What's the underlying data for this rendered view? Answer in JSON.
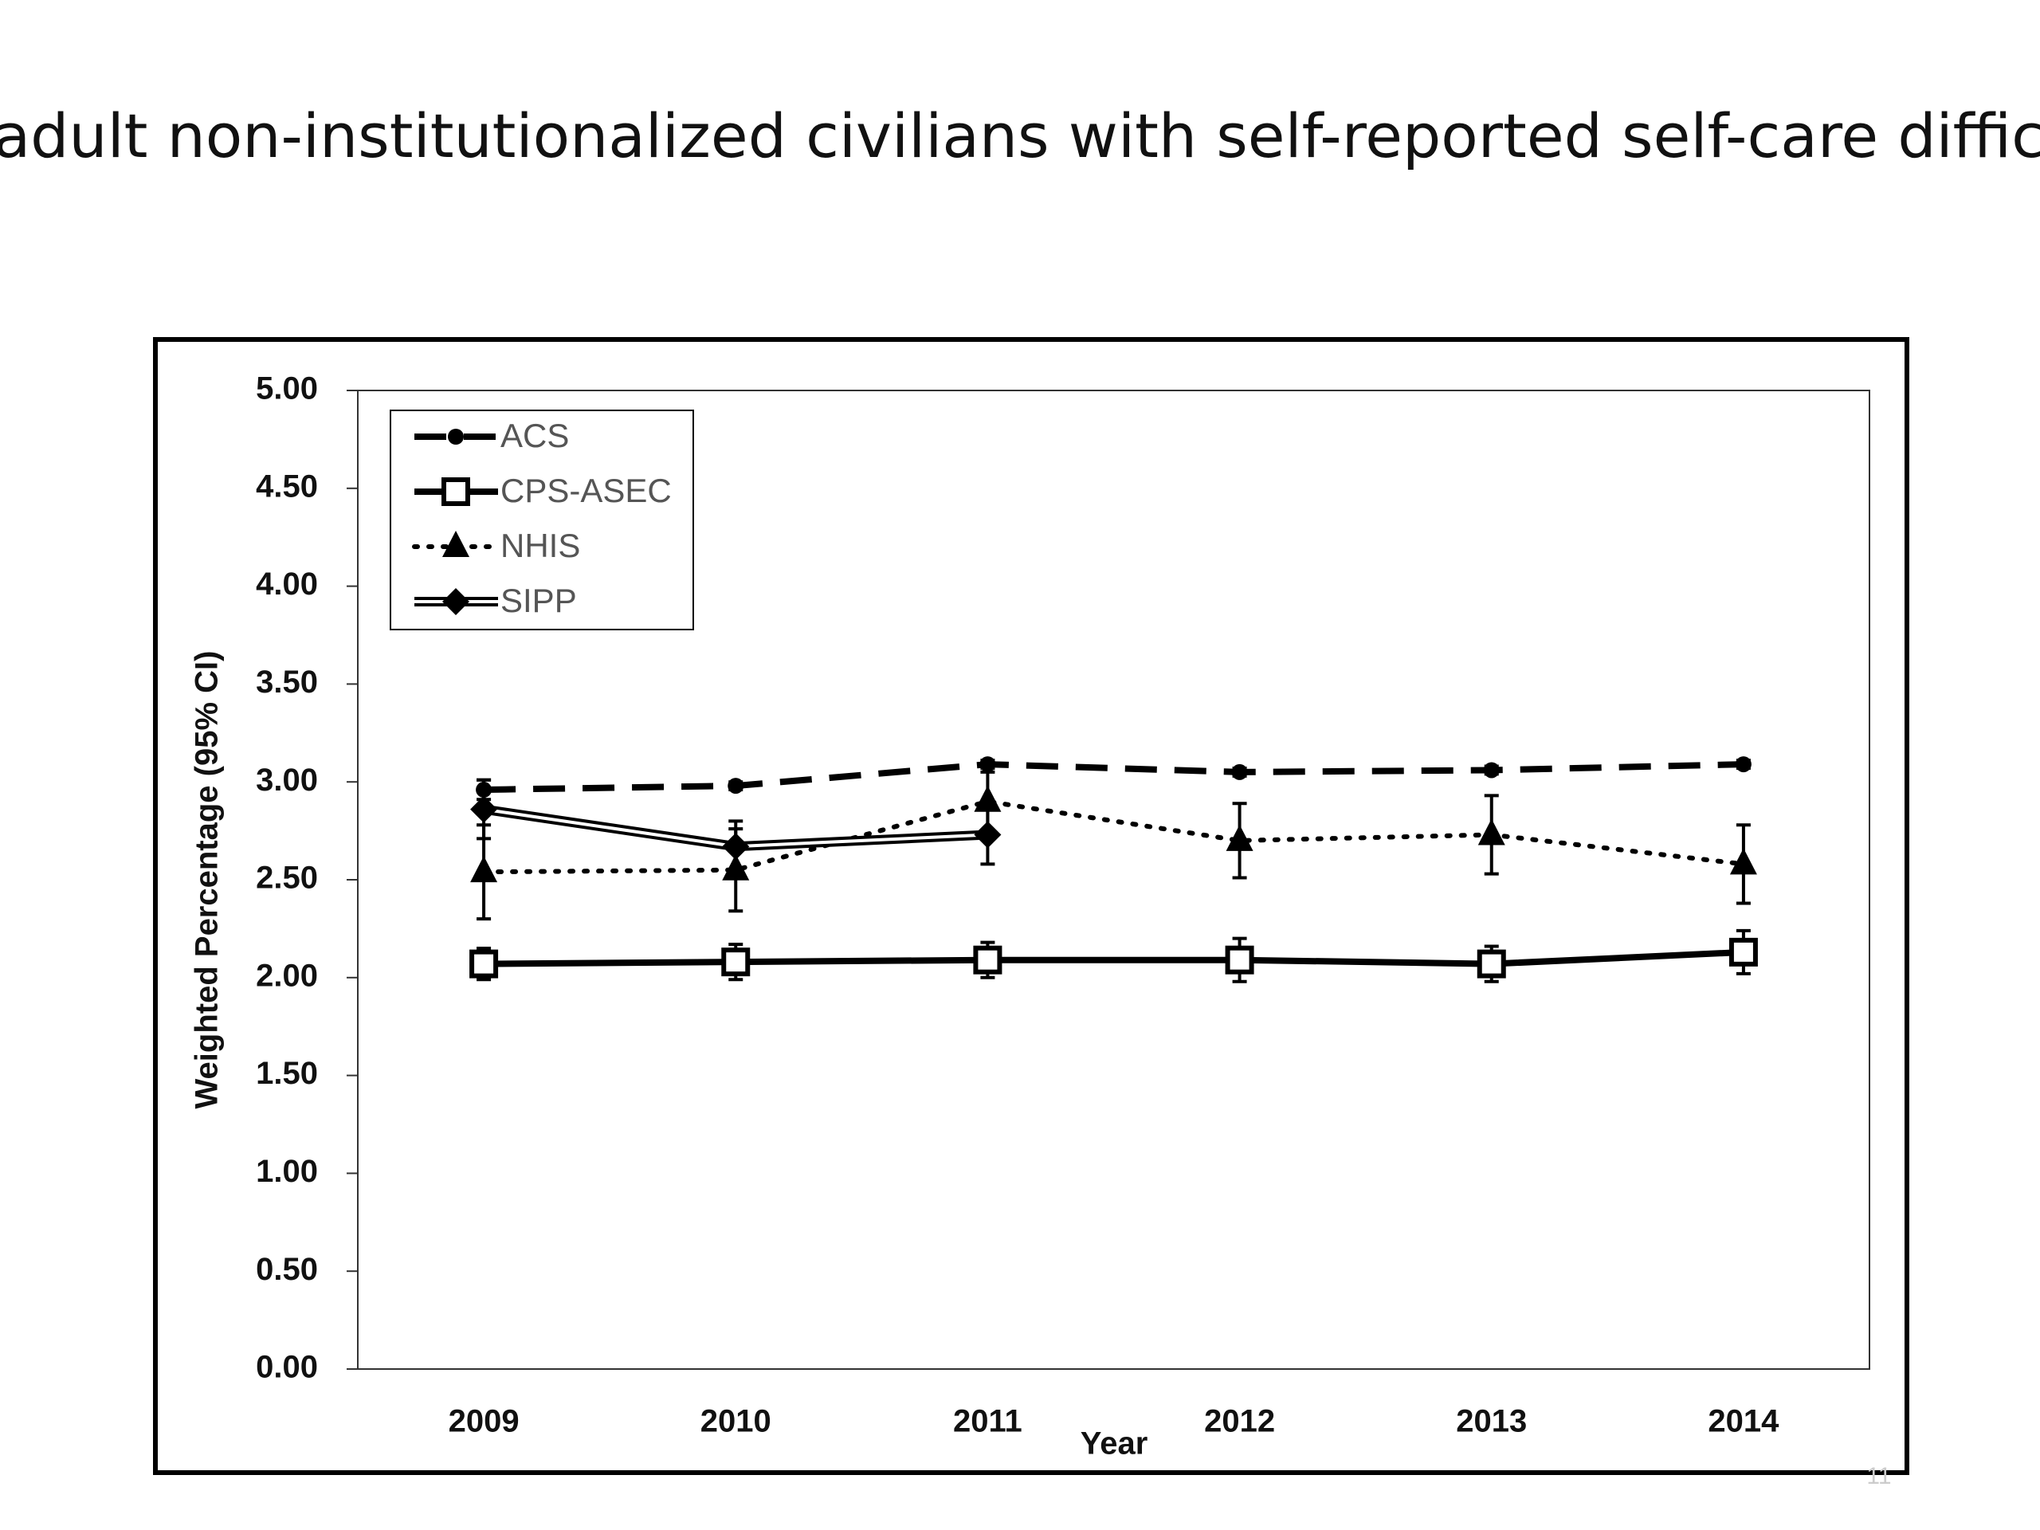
{
  "chart_data": {
    "type": "line",
    "title": "Weighted percentage of adult non-institutionalized civilians with self-reported self-care difficulties by survey and year",
    "x_label": "Year",
    "y_label": "Weighted Percentage (95% CI)",
    "slide_number": "11",
    "categories": [
      "2009",
      "2010",
      "2011",
      "2012",
      "2013",
      "2014"
    ],
    "ylim": [
      0,
      5
    ],
    "yticks": [
      {
        "value": 0,
        "label": "0.00"
      },
      {
        "value": 0.5,
        "label": "0.50"
      },
      {
        "value": 1,
        "label": "1.00"
      },
      {
        "value": 1.5,
        "label": "1.50"
      },
      {
        "value": 2,
        "label": "2.00"
      },
      {
        "value": 2.5,
        "label": "2.50"
      },
      {
        "value": 3,
        "label": "3.00"
      },
      {
        "value": 3.5,
        "label": "3.50"
      },
      {
        "value": 4,
        "label": "4.00"
      },
      {
        "value": 4.5,
        "label": "4.50"
      },
      {
        "value": 5,
        "label": "5.00"
      }
    ],
    "legend": "upper left",
    "series": [
      {
        "name": "ACS",
        "color": "#000000",
        "line_style": "dashed",
        "marker": "circle",
        "values": [
          2.96,
          2.98,
          3.09,
          3.05,
          3.06,
          3.09
        ],
        "errors": [
          0.05,
          0.02,
          0.02,
          0.02,
          0.02,
          0.02
        ]
      },
      {
        "name": "CPS-ASEC",
        "color": "#000000",
        "line_style": "solid",
        "marker": "square",
        "values": [
          2.07,
          2.08,
          2.09,
          2.09,
          2.07,
          2.13
        ],
        "errors": [
          0.08,
          0.09,
          0.09,
          0.11,
          0.09,
          0.11
        ]
      },
      {
        "name": "NHIS",
        "color": "#000000",
        "line_style": "dotted",
        "marker": "triangle",
        "values": [
          2.54,
          2.55,
          2.9,
          2.7,
          2.73,
          2.58
        ],
        "errors": [
          0.24,
          0.21,
          0.15,
          0.19,
          0.2,
          0.2
        ]
      },
      {
        "name": "SIPP",
        "color": "#000000",
        "line_style": "double",
        "marker": "diamond",
        "values": [
          2.86,
          2.67,
          2.73,
          null,
          null,
          null
        ],
        "errors": [
          0.15,
          0.13,
          0.15,
          null,
          null,
          null
        ]
      }
    ]
  }
}
